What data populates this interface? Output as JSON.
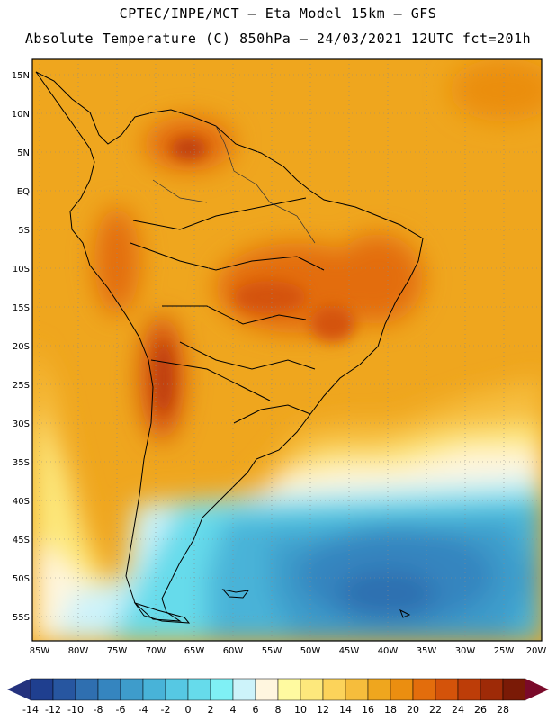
{
  "header": {
    "line1": "CPTEC/INPE/MCT —  Eta Model 15km — GFS",
    "line2": "Absolute Temperature (C) 850hPa — 24/03/2021 12UTC fct=201h"
  },
  "axes": {
    "lat_labels": [
      "15N",
      "10N",
      "5N",
      "EQ",
      "5S",
      "10S",
      "15S",
      "20S",
      "25S",
      "30S",
      "35S",
      "40S",
      "45S",
      "50S",
      "55S"
    ],
    "lon_labels": [
      "85W",
      "80W",
      "75W",
      "70W",
      "65W",
      "60W",
      "55W",
      "50W",
      "45W",
      "40W",
      "35W",
      "30W",
      "25W",
      "20W"
    ]
  },
  "colorbar": {
    "labels": [
      "-14",
      "-12",
      "-10",
      "-8",
      "-6",
      "-4",
      "-2",
      "0",
      "2",
      "4",
      "6",
      "8",
      "10",
      "12",
      "14",
      "16",
      "18",
      "20",
      "22",
      "24",
      "26",
      "28"
    ],
    "colors": [
      "#1f3f8f",
      "#2756a0",
      "#2f6fb0",
      "#3585bf",
      "#3e9ccb",
      "#48b3d8",
      "#56c8e3",
      "#66dbeb",
      "#7ff0f5",
      "#cdf3fa",
      "#fff6df",
      "#fffaa0",
      "#fde87c",
      "#fcd35a",
      "#f6bd3c",
      "#efa61e",
      "#eb8e10",
      "#e36d0c",
      "#d4530a",
      "#bd3d08",
      "#9e2a07",
      "#7a1a06"
    ],
    "under_color": "#24327e",
    "over_color": "#7a0a2a"
  }
}
